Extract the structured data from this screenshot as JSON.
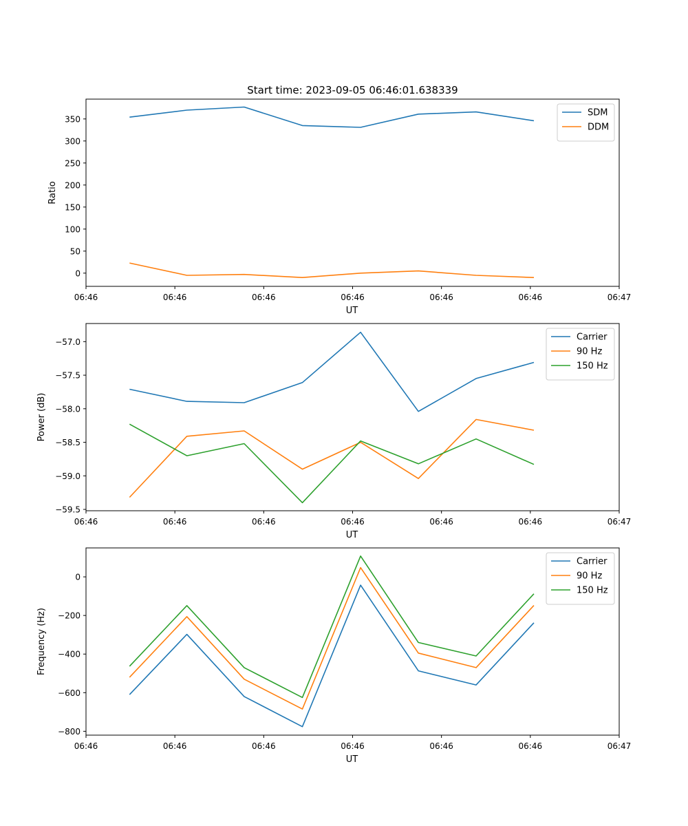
{
  "figure_title": "Start time: 2023-09-05 06:46:01.638339",
  "chart_data": [
    {
      "type": "line",
      "ylabel": "Ratio",
      "xlabel": "UT",
      "xlim": [
        0,
        12
      ],
      "ylim": [
        -30,
        395
      ],
      "x_ticks": [
        {
          "x": 0,
          "label": "06:46"
        },
        {
          "x": 2,
          "label": "06:46"
        },
        {
          "x": 4,
          "label": "06:46"
        },
        {
          "x": 6,
          "label": "06:46"
        },
        {
          "x": 8,
          "label": "06:46"
        },
        {
          "x": 10,
          "label": "06:46"
        },
        {
          "x": 12,
          "label": "06:47"
        }
      ],
      "y_ticks": [
        {
          "y": 0,
          "label": "0"
        },
        {
          "y": 50,
          "label": "50"
        },
        {
          "y": 100,
          "label": "100"
        },
        {
          "y": 150,
          "label": "150"
        },
        {
          "y": 200,
          "label": "200"
        },
        {
          "y": 250,
          "label": "250"
        },
        {
          "y": 300,
          "label": "300"
        },
        {
          "y": 350,
          "label": "350"
        }
      ],
      "x": [
        0.98,
        2.27,
        3.56,
        4.87,
        6.18,
        7.48,
        8.78,
        10.08
      ],
      "series": [
        {
          "name": "SDM",
          "color": "#1f77b4",
          "values": [
            354,
            370,
            377,
            335,
            331,
            361,
            366,
            346
          ]
        },
        {
          "name": "DDM",
          "color": "#ff7f0e",
          "values": [
            23,
            -5,
            -3,
            -10,
            0,
            5,
            -5,
            -10
          ]
        }
      ],
      "legend_position": "top-right"
    },
    {
      "type": "line",
      "ylabel": "Power (dB)",
      "xlabel": "UT",
      "xlim": [
        0,
        12
      ],
      "ylim": [
        -59.52,
        -56.73
      ],
      "x_ticks": [
        {
          "x": 0,
          "label": "06:46"
        },
        {
          "x": 2,
          "label": "06:46"
        },
        {
          "x": 4,
          "label": "06:46"
        },
        {
          "x": 6,
          "label": "06:46"
        },
        {
          "x": 8,
          "label": "06:46"
        },
        {
          "x": 10,
          "label": "06:46"
        },
        {
          "x": 12,
          "label": "06:47"
        }
      ],
      "y_ticks": [
        {
          "y": -59.5,
          "label": "−59.5"
        },
        {
          "y": -59.0,
          "label": "−59.0"
        },
        {
          "y": -58.5,
          "label": "−58.5"
        },
        {
          "y": -58.0,
          "label": "−58.0"
        },
        {
          "y": -57.5,
          "label": "−57.5"
        },
        {
          "y": -57.0,
          "label": "−57.0"
        }
      ],
      "x": [
        0.98,
        2.27,
        3.56,
        4.87,
        6.18,
        7.48,
        8.78,
        10.08
      ],
      "series": [
        {
          "name": "Carrier",
          "color": "#1f77b4",
          "values": [
            -57.71,
            -57.89,
            -57.91,
            -57.61,
            -56.86,
            -58.04,
            -57.55,
            -57.31
          ]
        },
        {
          "name": "90 Hz",
          "color": "#ff7f0e",
          "values": [
            -59.32,
            -58.41,
            -58.33,
            -58.9,
            -58.5,
            -59.04,
            -58.16,
            -58.32
          ]
        },
        {
          "name": "150 Hz",
          "color": "#2ca02c",
          "values": [
            -58.23,
            -58.7,
            -58.52,
            -59.4,
            -58.48,
            -58.82,
            -58.45,
            -58.83
          ]
        }
      ],
      "legend_position": "top-right"
    },
    {
      "type": "line",
      "ylabel": "Frequency (Hz)",
      "xlabel": "UT",
      "xlim": [
        0,
        12
      ],
      "ylim": [
        -820,
        150
      ],
      "x_ticks": [
        {
          "x": 0,
          "label": "06:46"
        },
        {
          "x": 2,
          "label": "06:46"
        },
        {
          "x": 4,
          "label": "06:46"
        },
        {
          "x": 6,
          "label": "06:46"
        },
        {
          "x": 8,
          "label": "06:46"
        },
        {
          "x": 10,
          "label": "06:46"
        },
        {
          "x": 12,
          "label": "06:47"
        }
      ],
      "y_ticks": [
        {
          "y": -800,
          "label": "−800"
        },
        {
          "y": -600,
          "label": "−600"
        },
        {
          "y": -400,
          "label": "−400"
        },
        {
          "y": -200,
          "label": "−200"
        },
        {
          "y": 0,
          "label": "0"
        }
      ],
      "x": [
        0.98,
        2.27,
        3.56,
        4.87,
        6.18,
        7.48,
        8.78,
        10.08
      ],
      "series": [
        {
          "name": "Carrier",
          "color": "#1f77b4",
          "values": [
            -610,
            -298,
            -620,
            -776,
            -43,
            -487,
            -560,
            -238
          ]
        },
        {
          "name": "90 Hz",
          "color": "#ff7f0e",
          "values": [
            -520,
            -206,
            -530,
            -685,
            48,
            -395,
            -470,
            -148
          ]
        },
        {
          "name": "150 Hz",
          "color": "#2ca02c",
          "values": [
            -463,
            -149,
            -470,
            -625,
            108,
            -340,
            -410,
            -88
          ]
        }
      ],
      "legend_position": "top-right"
    }
  ]
}
